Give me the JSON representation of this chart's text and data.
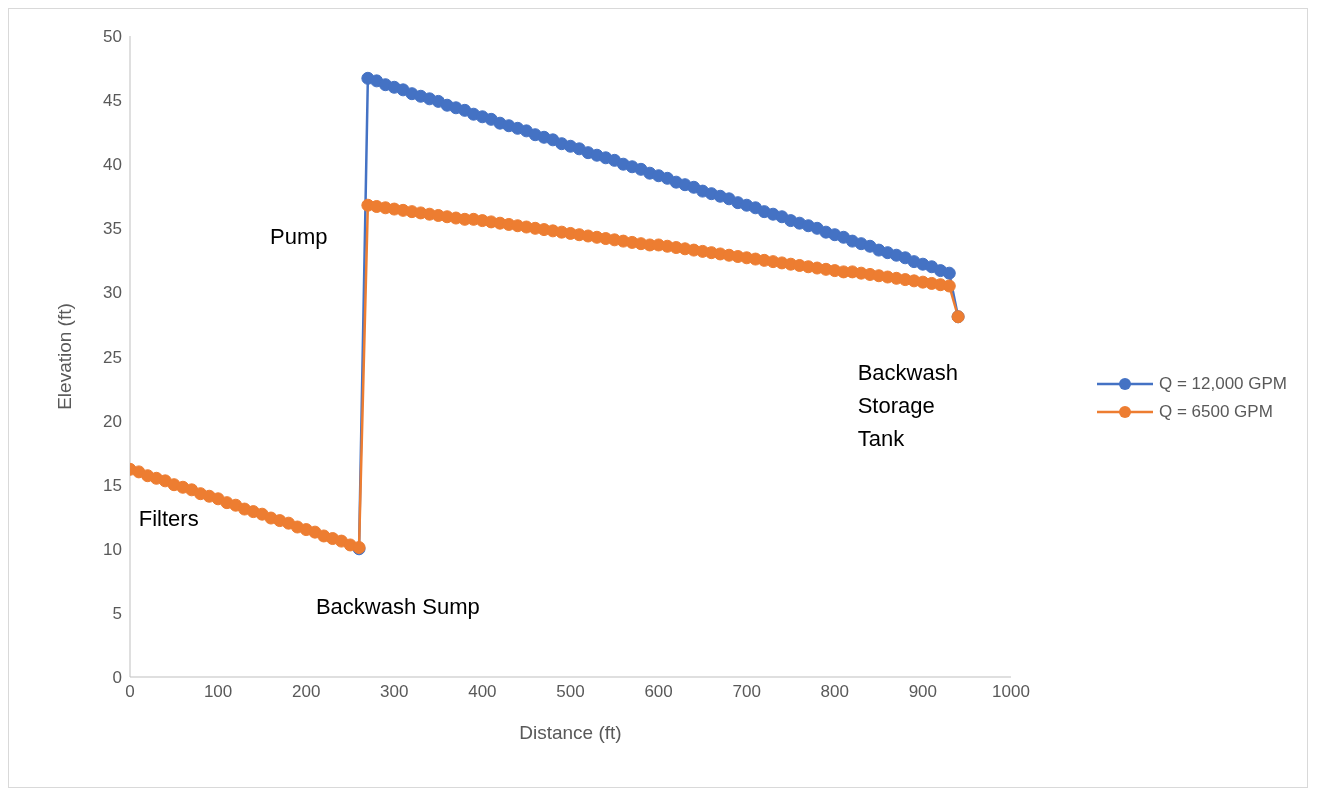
{
  "chart_data": {
    "type": "line",
    "xlabel": "Distance (ft)",
    "ylabel": "Elevation (ft)",
    "x": [
      0,
      10,
      20,
      30,
      40,
      50,
      60,
      70,
      80,
      90,
      100,
      110,
      120,
      130,
      140,
      150,
      160,
      170,
      180,
      190,
      200,
      210,
      220,
      230,
      240,
      250,
      260,
      270,
      280,
      290,
      300,
      310,
      320,
      330,
      340,
      350,
      360,
      370,
      380,
      390,
      400,
      410,
      420,
      430,
      440,
      450,
      460,
      470,
      480,
      490,
      500,
      510,
      520,
      530,
      540,
      550,
      560,
      570,
      580,
      590,
      600,
      610,
      620,
      630,
      640,
      650,
      660,
      670,
      680,
      690,
      700,
      710,
      720,
      730,
      740,
      750,
      760,
      770,
      780,
      790,
      800,
      810,
      820,
      830,
      840,
      850,
      860,
      870,
      880,
      890,
      900,
      910,
      920,
      930,
      940
    ],
    "series": [
      {
        "name": "Q = 12,000 GPM",
        "color": "#4472c4",
        "values": [
          null,
          null,
          null,
          null,
          null,
          null,
          null,
          null,
          null,
          null,
          null,
          null,
          null,
          null,
          null,
          null,
          null,
          null,
          null,
          null,
          null,
          null,
          null,
          null,
          null,
          null,
          10.0,
          46.7,
          46.5,
          46.2,
          46.0,
          45.8,
          45.5,
          45.3,
          45.1,
          44.9,
          44.6,
          44.4,
          44.2,
          43.9,
          43.7,
          43.5,
          43.2,
          43.0,
          42.8,
          42.6,
          42.3,
          42.1,
          41.9,
          41.6,
          41.4,
          41.2,
          40.9,
          40.7,
          40.5,
          40.3,
          40.0,
          39.8,
          39.6,
          39.3,
          39.1,
          38.9,
          38.6,
          38.4,
          38.2,
          37.9,
          37.7,
          37.5,
          37.3,
          37.0,
          36.8,
          36.6,
          36.3,
          36.1,
          35.9,
          35.6,
          35.4,
          35.2,
          35.0,
          34.7,
          34.5,
          34.3,
          34.0,
          33.8,
          33.6,
          33.3,
          33.1,
          32.9,
          32.7,
          32.4,
          32.2,
          32.0,
          31.7,
          31.5,
          28.1
        ]
      },
      {
        "name": "Q = 6500 GPM",
        "color": "#ed7d31",
        "values": [
          16.2,
          16.0,
          15.7,
          15.5,
          15.3,
          15.0,
          14.8,
          14.6,
          14.3,
          14.1,
          13.9,
          13.6,
          13.4,
          13.1,
          12.9,
          12.7,
          12.4,
          12.2,
          12.0,
          11.7,
          11.5,
          11.3,
          11.0,
          10.8,
          10.6,
          10.3,
          10.1,
          36.8,
          36.7,
          36.6,
          36.5,
          36.4,
          36.3,
          36.2,
          36.1,
          36.0,
          35.9,
          35.8,
          35.7,
          35.7,
          35.6,
          35.5,
          35.4,
          35.3,
          35.2,
          35.1,
          35.0,
          34.9,
          34.8,
          34.7,
          34.6,
          34.5,
          34.4,
          34.3,
          34.2,
          34.1,
          34.0,
          33.9,
          33.8,
          33.7,
          33.7,
          33.6,
          33.5,
          33.4,
          33.3,
          33.2,
          33.1,
          33.0,
          32.9,
          32.8,
          32.7,
          32.6,
          32.5,
          32.4,
          32.3,
          32.2,
          32.1,
          32.0,
          31.9,
          31.8,
          31.7,
          31.6,
          31.6,
          31.5,
          31.4,
          31.3,
          31.2,
          31.1,
          31.0,
          30.9,
          30.8,
          30.7,
          30.6,
          30.5,
          28.1
        ]
      }
    ],
    "xlim": [
      0,
      1000
    ],
    "xticks": [
      0,
      100,
      200,
      300,
      400,
      500,
      600,
      700,
      800,
      900,
      1000
    ],
    "ylim": [
      0,
      50
    ],
    "yticks": [
      0,
      5,
      10,
      15,
      20,
      25,
      30,
      35,
      40,
      45,
      50
    ],
    "grid": false,
    "legend": "right",
    "marker": "circle",
    "line_style": "solid",
    "annotations": [
      "Filters",
      "Backwash Sump",
      "Pump",
      "Backwash Storage Tank"
    ]
  }
}
